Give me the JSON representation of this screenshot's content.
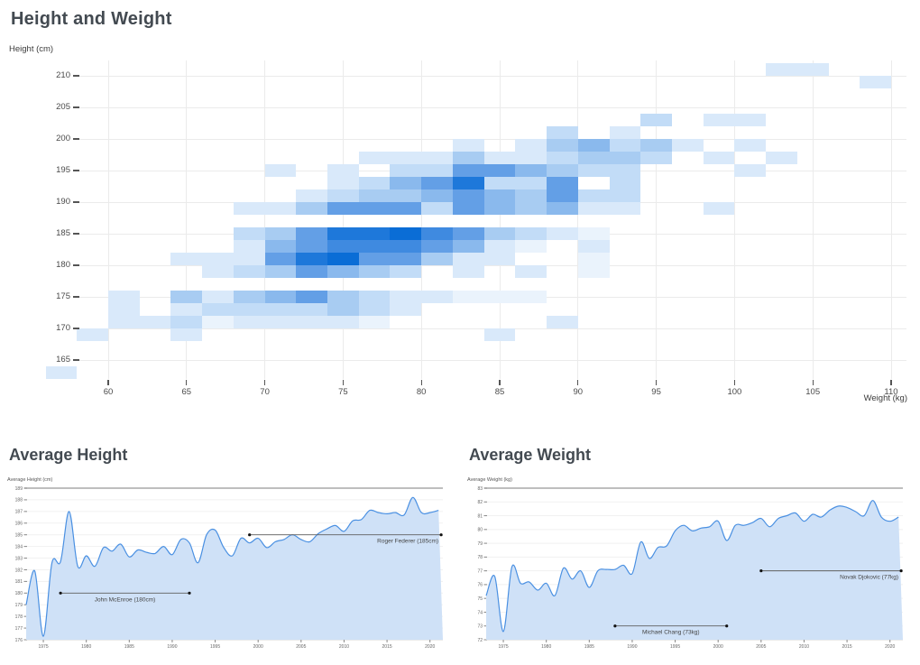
{
  "page": {
    "background": "#ffffff"
  },
  "colors": {
    "title_text": "#434a51",
    "axis_text": "#4a4a4a",
    "gridline": "#ebebeb",
    "area_fill": "#cfe1f7",
    "line_stroke": "#4a90e2",
    "annotation_line": "#5f5f5f",
    "annotation_dot": "#111111",
    "top_rule": "#a8a8a8",
    "heatmap_palette": [
      "#eaf3fc",
      "#d9e9fa",
      "#c2dcf7",
      "#a8ccf2",
      "#8ab9ed",
      "#639fe6",
      "#3f8ae0",
      "#1e78da",
      "#0a6dd6"
    ]
  },
  "chart_data": [
    {
      "type": "heatmap",
      "title": "Height and Weight",
      "xlabel": "Weight (kg)",
      "ylabel": "Height (cm)",
      "x_ticks": [
        60,
        65,
        70,
        75,
        80,
        85,
        90,
        95,
        100,
        105,
        110
      ],
      "y_ticks": [
        165,
        170,
        175,
        180,
        185,
        190,
        195,
        200,
        205,
        210
      ],
      "xlim": [
        56,
        111
      ],
      "ylim": [
        162,
        212
      ],
      "bin_width_kg": 2,
      "bin_height_cm": 2,
      "intensity_scale": "1 (lightest) to 9 (darkest)",
      "cells": [
        [
          102,
          210,
          2
        ],
        [
          104,
          210,
          2
        ],
        [
          108,
          208,
          2
        ],
        [
          94,
          202,
          3
        ],
        [
          98,
          202,
          2
        ],
        [
          100,
          202,
          2
        ],
        [
          88,
          200,
          3
        ],
        [
          92,
          200,
          2
        ],
        [
          82,
          198,
          2
        ],
        [
          86,
          198,
          2
        ],
        [
          88,
          198,
          4
        ],
        [
          90,
          198,
          5
        ],
        [
          92,
          198,
          3
        ],
        [
          94,
          198,
          4
        ],
        [
          96,
          198,
          2
        ],
        [
          100,
          198,
          2
        ],
        [
          76,
          196,
          2
        ],
        [
          78,
          196,
          2
        ],
        [
          80,
          196,
          2
        ],
        [
          82,
          196,
          4
        ],
        [
          84,
          196,
          2
        ],
        [
          86,
          196,
          2
        ],
        [
          88,
          196,
          3
        ],
        [
          90,
          196,
          4
        ],
        [
          92,
          196,
          4
        ],
        [
          94,
          196,
          3
        ],
        [
          98,
          196,
          2
        ],
        [
          102,
          196,
          2
        ],
        [
          70,
          194,
          2
        ],
        [
          74,
          194,
          2
        ],
        [
          78,
          194,
          3
        ],
        [
          80,
          194,
          3
        ],
        [
          82,
          194,
          6
        ],
        [
          84,
          194,
          6
        ],
        [
          86,
          194,
          5
        ],
        [
          88,
          194,
          4
        ],
        [
          90,
          194,
          3
        ],
        [
          92,
          194,
          3
        ],
        [
          100,
          194,
          2
        ],
        [
          74,
          192,
          2
        ],
        [
          76,
          192,
          3
        ],
        [
          78,
          192,
          5
        ],
        [
          80,
          192,
          6
        ],
        [
          82,
          192,
          8
        ],
        [
          84,
          192,
          3
        ],
        [
          86,
          192,
          3
        ],
        [
          88,
          192,
          6
        ],
        [
          92,
          192,
          3
        ],
        [
          72,
          190,
          2
        ],
        [
          74,
          190,
          3
        ],
        [
          76,
          190,
          4
        ],
        [
          78,
          190,
          4
        ],
        [
          80,
          190,
          5
        ],
        [
          82,
          190,
          6
        ],
        [
          84,
          190,
          5
        ],
        [
          86,
          190,
          4
        ],
        [
          88,
          190,
          6
        ],
        [
          90,
          190,
          3
        ],
        [
          92,
          190,
          3
        ],
        [
          68,
          188,
          2
        ],
        [
          70,
          188,
          2
        ],
        [
          72,
          188,
          4
        ],
        [
          74,
          188,
          6
        ],
        [
          76,
          188,
          6
        ],
        [
          78,
          188,
          6
        ],
        [
          80,
          188,
          3
        ],
        [
          82,
          188,
          6
        ],
        [
          84,
          188,
          5
        ],
        [
          86,
          188,
          4
        ],
        [
          88,
          188,
          5
        ],
        [
          90,
          188,
          2
        ],
        [
          92,
          188,
          2
        ],
        [
          98,
          188,
          2
        ],
        [
          68,
          184,
          3
        ],
        [
          70,
          184,
          4
        ],
        [
          72,
          184,
          6
        ],
        [
          74,
          184,
          8
        ],
        [
          76,
          184,
          8
        ],
        [
          78,
          184,
          9
        ],
        [
          80,
          184,
          7
        ],
        [
          82,
          184,
          6
        ],
        [
          84,
          184,
          4
        ],
        [
          86,
          184,
          3
        ],
        [
          88,
          184,
          2
        ],
        [
          90,
          184,
          1
        ],
        [
          68,
          182,
          2
        ],
        [
          70,
          182,
          5
        ],
        [
          72,
          182,
          6
        ],
        [
          74,
          182,
          7
        ],
        [
          76,
          182,
          7
        ],
        [
          78,
          182,
          7
        ],
        [
          80,
          182,
          6
        ],
        [
          82,
          182,
          5
        ],
        [
          84,
          182,
          2
        ],
        [
          86,
          182,
          1
        ],
        [
          90,
          182,
          2
        ],
        [
          64,
          180,
          2
        ],
        [
          66,
          180,
          2
        ],
        [
          68,
          180,
          2
        ],
        [
          70,
          180,
          6
        ],
        [
          72,
          180,
          8
        ],
        [
          74,
          180,
          9
        ],
        [
          76,
          180,
          6
        ],
        [
          78,
          180,
          6
        ],
        [
          80,
          180,
          4
        ],
        [
          82,
          180,
          2
        ],
        [
          84,
          180,
          2
        ],
        [
          90,
          180,
          1
        ],
        [
          66,
          178,
          2
        ],
        [
          68,
          178,
          3
        ],
        [
          70,
          178,
          4
        ],
        [
          72,
          178,
          6
        ],
        [
          74,
          178,
          5
        ],
        [
          76,
          178,
          4
        ],
        [
          78,
          178,
          3
        ],
        [
          82,
          178,
          2
        ],
        [
          86,
          178,
          2
        ],
        [
          90,
          178,
          1
        ],
        [
          60,
          174,
          2
        ],
        [
          64,
          174,
          4
        ],
        [
          66,
          174,
          2
        ],
        [
          68,
          174,
          4
        ],
        [
          70,
          174,
          5
        ],
        [
          72,
          174,
          6
        ],
        [
          74,
          174,
          4
        ],
        [
          76,
          174,
          3
        ],
        [
          78,
          174,
          2
        ],
        [
          80,
          174,
          2
        ],
        [
          82,
          174,
          1
        ],
        [
          84,
          174,
          1
        ],
        [
          86,
          174,
          1
        ],
        [
          60,
          172,
          2
        ],
        [
          64,
          172,
          2
        ],
        [
          66,
          172,
          3
        ],
        [
          68,
          172,
          3
        ],
        [
          70,
          172,
          3
        ],
        [
          72,
          172,
          3
        ],
        [
          74,
          172,
          4
        ],
        [
          76,
          172,
          3
        ],
        [
          78,
          172,
          2
        ],
        [
          60,
          170,
          2
        ],
        [
          62,
          170,
          2
        ],
        [
          64,
          170,
          3
        ],
        [
          66,
          170,
          1
        ],
        [
          68,
          170,
          2
        ],
        [
          70,
          170,
          2
        ],
        [
          72,
          170,
          2
        ],
        [
          74,
          170,
          2
        ],
        [
          76,
          170,
          1
        ],
        [
          88,
          170,
          2
        ],
        [
          58,
          168,
          2
        ],
        [
          64,
          168,
          2
        ],
        [
          84,
          168,
          2
        ],
        [
          56,
          162,
          2
        ]
      ]
    },
    {
      "type": "area",
      "title": "Average Height",
      "ylabel": "Average Height (cm)",
      "ylim": [
        176,
        189
      ],
      "y_tick_step": 1,
      "x_ticks": [
        1975,
        1980,
        1985,
        1990,
        1995,
        2000,
        2005,
        2010,
        2015,
        2020
      ],
      "x": [
        1973,
        1974,
        1975,
        1976,
        1977,
        1978,
        1979,
        1980,
        1981,
        1982,
        1983,
        1984,
        1985,
        1986,
        1987,
        1988,
        1989,
        1990,
        1991,
        1992,
        1993,
        1994,
        1995,
        1996,
        1997,
        1998,
        1999,
        2000,
        2001,
        2002,
        2003,
        2004,
        2005,
        2006,
        2007,
        2008,
        2009,
        2010,
        2011,
        2012,
        2013,
        2014,
        2015,
        2016,
        2017,
        2018,
        2019,
        2020,
        2021
      ],
      "values": [
        179.0,
        181.9,
        176.3,
        182.6,
        182.7,
        187.0,
        182.3,
        183.2,
        182.3,
        183.9,
        183.6,
        184.2,
        183.1,
        183.7,
        183.5,
        183.4,
        184.0,
        183.3,
        184.6,
        184.3,
        182.6,
        185.0,
        185.4,
        183.9,
        183.2,
        184.7,
        184.3,
        184.7,
        183.9,
        184.4,
        184.6,
        185.0,
        184.6,
        184.4,
        185.1,
        185.5,
        185.8,
        185.3,
        186.2,
        186.3,
        187.1,
        186.9,
        186.8,
        186.9,
        186.7,
        188.2,
        186.9,
        186.9,
        187.1
      ],
      "annotations": [
        {
          "label": "John McEnroe (180cm)",
          "y": 180,
          "x1": 1977,
          "x2": 1992,
          "align": "center"
        },
        {
          "label": "Roger Federer (185cm)",
          "y": 185,
          "x1": 1999,
          "x2": 2021.3,
          "align": "right"
        }
      ]
    },
    {
      "type": "area",
      "title": "Average Weight",
      "ylabel": "Average Weight (kg)",
      "ylim": [
        72,
        83
      ],
      "y_tick_step": 1,
      "x_ticks": [
        1975,
        1980,
        1985,
        1990,
        1995,
        2000,
        2005,
        2010,
        2015,
        2020
      ],
      "x": [
        1973,
        1974,
        1975,
        1976,
        1977,
        1978,
        1979,
        1980,
        1981,
        1982,
        1983,
        1984,
        1985,
        1986,
        1987,
        1988,
        1989,
        1990,
        1991,
        1992,
        1993,
        1994,
        1995,
        1996,
        1997,
        1998,
        1999,
        2000,
        2001,
        2002,
        2003,
        2004,
        2005,
        2006,
        2007,
        2008,
        2009,
        2010,
        2011,
        2012,
        2013,
        2014,
        2015,
        2016,
        2017,
        2018,
        2019,
        2020,
        2021
      ],
      "values": [
        75.2,
        76.6,
        72.6,
        77.3,
        76.1,
        76.2,
        75.6,
        76.1,
        75.2,
        77.2,
        76.4,
        77.0,
        75.8,
        77.0,
        77.1,
        77.1,
        77.4,
        76.8,
        79.1,
        77.9,
        78.7,
        78.8,
        79.9,
        80.3,
        79.9,
        80.1,
        80.2,
        80.6,
        79.2,
        80.3,
        80.3,
        80.5,
        80.8,
        80.2,
        80.8,
        81.0,
        81.2,
        80.6,
        81.1,
        80.9,
        81.4,
        81.7,
        81.6,
        81.3,
        81.0,
        82.1,
        80.9,
        80.6,
        80.9
      ],
      "annotations": [
        {
          "label": "Michael Chang (73kg)",
          "y": 73,
          "x1": 1988,
          "x2": 2001,
          "align": "center"
        },
        {
          "label": "Novak Djokovic (77kg)",
          "y": 77,
          "x1": 2005,
          "x2": 2021.3,
          "align": "right"
        }
      ]
    }
  ]
}
